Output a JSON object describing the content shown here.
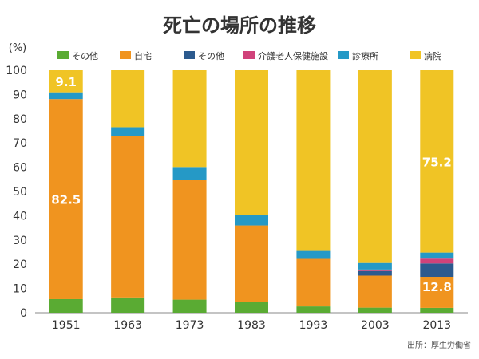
{
  "chart_data": {
    "type": "bar",
    "stacked": true,
    "title": "死亡の場所の推移",
    "y_unit_label": "(%)",
    "xlabel": "",
    "ylabel": "",
    "ylim": [
      0,
      100
    ],
    "yticks": [
      0,
      10,
      20,
      30,
      40,
      50,
      60,
      70,
      80,
      90,
      100
    ],
    "grid": false,
    "legend_position": "top",
    "categories": [
      "1951",
      "1963",
      "1973",
      "1983",
      "1993",
      "2003",
      "2013"
    ],
    "series": [
      {
        "name": "その他",
        "color": "#5aab33",
        "values": [
          5.6,
          6.3,
          5.4,
          4.4,
          2.6,
          2.1,
          2.0
        ]
      },
      {
        "name": "自宅",
        "color": "#f0941f",
        "values": [
          82.5,
          66.5,
          49.4,
          31.6,
          19.6,
          13.2,
          12.8
        ]
      },
      {
        "name": "その他",
        "color": "#2c5a8e",
        "values": [
          0.0,
          0.0,
          0.0,
          0.0,
          0.0,
          1.9,
          5.5
        ]
      },
      {
        "name": "介護老人保健施設",
        "color": "#d0427a",
        "values": [
          0.0,
          0.0,
          0.0,
          0.0,
          0.0,
          0.6,
          2.0
        ]
      },
      {
        "name": "診療所",
        "color": "#2599c6",
        "values": [
          2.8,
          3.7,
          5.3,
          4.3,
          3.6,
          2.7,
          2.5
        ]
      },
      {
        "name": "病院",
        "color": "#f0c425",
        "values": [
          9.1,
          23.5,
          39.9,
          59.7,
          74.2,
          79.5,
          75.2
        ]
      }
    ],
    "annotations": [
      {
        "category": "1951",
        "series": "病院",
        "text": "9.1"
      },
      {
        "category": "1951",
        "series": "自宅",
        "text": "82.5"
      },
      {
        "category": "2013",
        "series": "病院",
        "text": "75.2"
      },
      {
        "category": "2013",
        "series": "自宅",
        "text": "12.8"
      }
    ],
    "source": "出所：厚生労働省"
  }
}
